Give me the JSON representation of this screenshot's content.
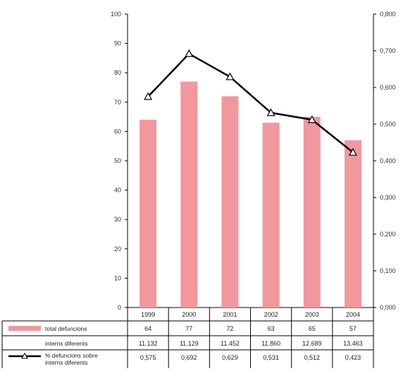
{
  "chart_data": {
    "type": "bar",
    "categories": [
      "1999",
      "2000",
      "2001",
      "2002",
      "2003",
      "2004"
    ],
    "series": [
      {
        "name": "total defuncions",
        "kind": "bar",
        "axis": "left",
        "color": "#f2979b",
        "values": [
          64,
          77,
          72,
          63,
          65,
          57
        ],
        "labels": [
          "64",
          "77",
          "72",
          "63",
          "65",
          "57"
        ]
      },
      {
        "name": "% defuncions sobre interns diferents",
        "kind": "line",
        "axis": "right",
        "color": "#000000",
        "marker": "triangle",
        "values": [
          0.575,
          0.692,
          0.629,
          0.531,
          0.512,
          0.423
        ],
        "labels": [
          "0,575",
          "0,692",
          "0,629",
          "0,531",
          "0,512",
          "0,423"
        ]
      }
    ],
    "table_row": {
      "name": "interns diferents",
      "labels": [
        "11.132",
        "11.129",
        "11.452",
        "11.860",
        "12.689",
        "13.463"
      ]
    },
    "y_left": {
      "ylim": [
        0,
        100
      ],
      "ticks": [
        "0",
        "10",
        "20",
        "30",
        "40",
        "50",
        "60",
        "70",
        "80",
        "90",
        "100"
      ]
    },
    "y_right": {
      "ylim": [
        0,
        0.8
      ],
      "ticks": [
        "0,000",
        "0,100",
        "0,200",
        "0,300",
        "0,400",
        "0,500",
        "0,600",
        "0,700",
        "0,800"
      ]
    },
    "grid": false,
    "legend": "data table below plot"
  }
}
